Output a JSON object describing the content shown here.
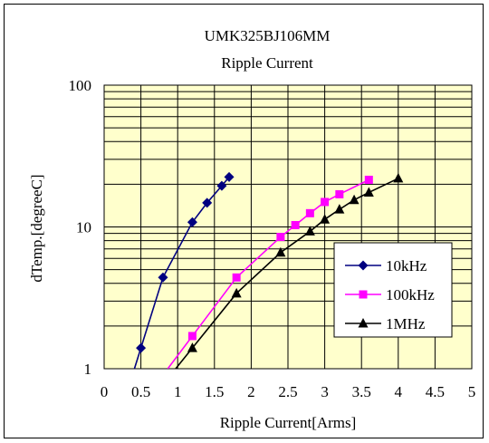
{
  "chart_data": {
    "type": "line",
    "title": "UMK325BJ106MM",
    "subtitle": "Ripple Current",
    "xlabel": "Ripple Current[Arms]",
    "ylabel": "dTemp.[degreeC]",
    "xlim": [
      0,
      5
    ],
    "ylim": [
      1,
      100
    ],
    "yscale": "log",
    "x_ticks": [
      "0",
      "0.5",
      "1",
      "1.5",
      "2",
      "2.5",
      "3",
      "3.5",
      "4",
      "4.5",
      "5"
    ],
    "y_ticks": [
      "1",
      "10",
      "100"
    ],
    "grid": true,
    "legend_position": "bottom-right",
    "plot_background": "#ffffcc",
    "series": [
      {
        "name": "10kHz",
        "color": "#000080",
        "marker": "diamond",
        "x": [
          0.5,
          0.8,
          1.2,
          1.4,
          1.6,
          1.7
        ],
        "y": [
          1.4,
          4.4,
          10.8,
          14.8,
          19.5,
          22.5
        ]
      },
      {
        "name": "100kHz",
        "color": "#ff00ff",
        "marker": "square",
        "x": [
          1.2,
          1.8,
          2.4,
          2.6,
          2.8,
          3.0,
          3.2,
          3.6
        ],
        "y": [
          1.7,
          4.4,
          8.5,
          10.3,
          12.5,
          15.0,
          17.0,
          21.5
        ]
      },
      {
        "name": "1MHz",
        "color": "#000000",
        "marker": "triangle",
        "x": [
          1.2,
          1.8,
          2.4,
          2.8,
          3.0,
          3.2,
          3.4,
          3.6,
          4.0
        ],
        "y": [
          1.4,
          3.4,
          6.6,
          9.3,
          11.3,
          13.3,
          15.5,
          17.5,
          22.0
        ]
      }
    ]
  }
}
